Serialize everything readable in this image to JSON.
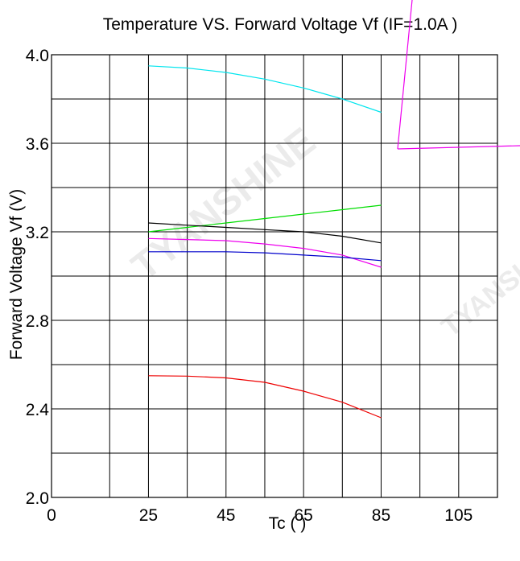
{
  "chart_data": {
    "type": "line",
    "title": "Temperature VS.  Forward  Voltage  Vf (IF=1.0A )",
    "xlabel": "Tc (    )",
    "ylabel": "Forward  Voltage  Vf  (V)",
    "xlim": [
      0,
      115
    ],
    "ylim": [
      2.0,
      4.0
    ],
    "x_ticks": [
      0,
      25,
      45,
      65,
      85,
      105
    ],
    "x_tick_labels": [
      "0",
      "25",
      "45",
      "65",
      "85",
      "105"
    ],
    "x_grid": [
      0,
      15,
      25,
      35,
      45,
      55,
      65,
      75,
      85,
      95,
      105,
      115
    ],
    "y_ticks": [
      2.0,
      2.4,
      2.8,
      3.2,
      3.6,
      4.0
    ],
    "y_tick_labels": [
      "2.0",
      "2.4",
      "2.8",
      "3.2",
      "3.6",
      "4.0"
    ],
    "y_grid": [
      2.0,
      2.2,
      2.4,
      2.6,
      2.8,
      3.0,
      3.2,
      3.4,
      3.6,
      3.8,
      4.0
    ],
    "grid": true,
    "x": [
      25,
      35,
      45,
      55,
      65,
      75,
      85
    ],
    "series": [
      {
        "color": "#00e5ee",
        "values": [
          3.95,
          3.94,
          3.92,
          3.89,
          3.85,
          3.8,
          3.74
        ]
      },
      {
        "color": "#00dd00",
        "values": [
          3.2,
          3.22,
          3.24,
          3.26,
          3.28,
          3.3,
          3.32
        ]
      },
      {
        "color": "#000000",
        "values": [
          3.24,
          3.23,
          3.22,
          3.21,
          3.2,
          3.18,
          3.15
        ]
      },
      {
        "color": "#ee00ee",
        "values": [
          3.17,
          3.165,
          3.16,
          3.145,
          3.125,
          3.095,
          3.04
        ]
      },
      {
        "color": "#0000cc",
        "values": [
          3.11,
          3.11,
          3.11,
          3.105,
          3.095,
          3.085,
          3.07
        ]
      },
      {
        "color": "#ee0000",
        "values": [
          2.55,
          2.548,
          2.54,
          2.52,
          2.48,
          2.43,
          2.36
        ]
      }
    ]
  },
  "watermark": "TYANSHINE",
  "annotation_color": "#ee00ee"
}
